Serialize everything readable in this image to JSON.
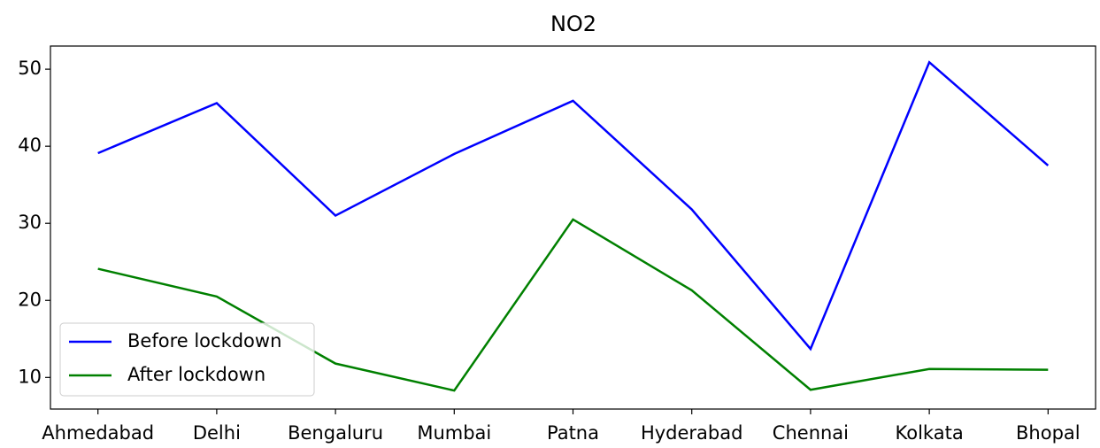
{
  "chart_data": {
    "type": "line",
    "title": "NO2",
    "categories": [
      "Ahmedabad",
      "Delhi",
      "Bengaluru",
      "Mumbai",
      "Patna",
      "Hyderabad",
      "Chennai",
      "Kolkata",
      "Bhopal"
    ],
    "series": [
      {
        "name": "Before lockdown",
        "color": "#0000ff",
        "values": [
          39.1,
          45.6,
          31.0,
          39.0,
          45.9,
          31.8,
          13.7,
          50.9,
          37.5
        ]
      },
      {
        "name": "After lockdown",
        "color": "#008000",
        "values": [
          24.1,
          20.5,
          11.8,
          8.3,
          30.5,
          21.3,
          8.4,
          11.1,
          11.0
        ]
      }
    ],
    "ylim": [
      5.9,
      53.0
    ],
    "yticks": [
      10,
      20,
      30,
      40,
      50
    ],
    "grid": false,
    "legend": "lower left"
  }
}
